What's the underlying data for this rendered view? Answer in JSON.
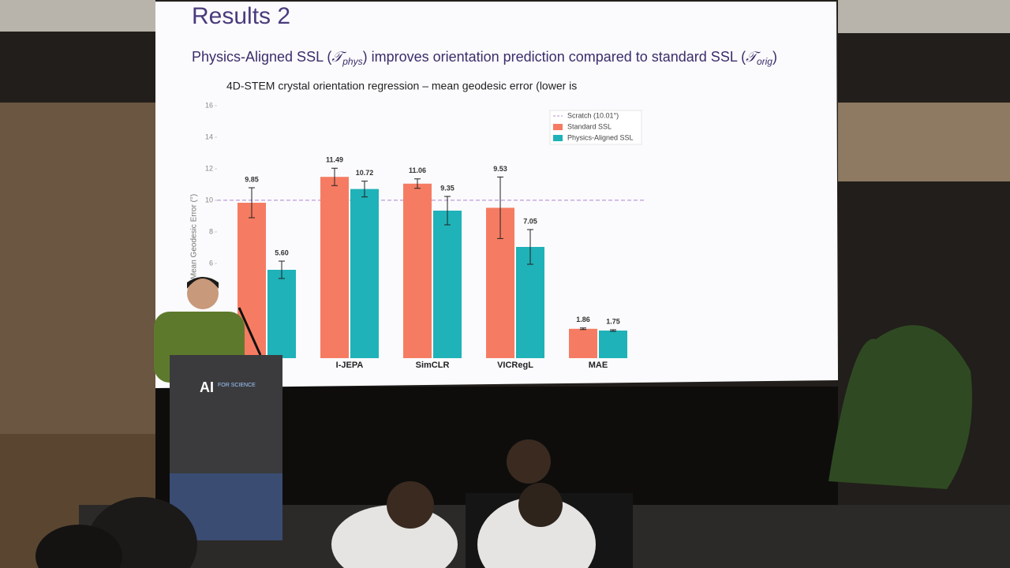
{
  "slide": {
    "title": "Results 2",
    "subtitle": [
      "Physics-Aligned SSL (",
      "𝒯",
      "phys",
      ") improves orientation prediction compared to standard SSL (",
      "𝒯",
      "orig",
      ")"
    ]
  },
  "podium": {
    "logo": "AI",
    "event": "FOR SCIENCE"
  },
  "chart_data": {
    "type": "bar",
    "title": "4D-STEM crystal orientation regression – mean geodesic error (lower is",
    "y_label": "Mean Geodesic Error (°)",
    "categories": [
      null,
      "I-JEPA",
      "SimCLR",
      "VICRegL",
      "MAE"
    ],
    "series": [
      {
        "name": "Standard SSL",
        "color": "#f57c62",
        "values": [
          9.85,
          11.49,
          11.06,
          9.53,
          1.86
        ],
        "value_labels": [
          "9.85",
          "11.49",
          "11.06",
          "9.53",
          "1.86"
        ],
        "errors": [
          0.95,
          0.55,
          0.3,
          1.95,
          0.05
        ]
      },
      {
        "name": "Physics-Aligned SSL",
        "color": "#1fb2b8",
        "values": [
          5.6,
          10.72,
          9.35,
          7.05,
          1.75
        ],
        "value_labels": [
          "5.60",
          "10.72",
          "9.35",
          "7.05",
          "1.75"
        ],
        "errors": [
          0.55,
          0.5,
          0.9,
          1.1,
          0.05
        ]
      }
    ],
    "reference": {
      "label": "Scratch (10.01°)",
      "value": 10.01,
      "color": "#b58fd6"
    },
    "ylim": [
      0,
      16
    ],
    "yticks": [
      6,
      8,
      10,
      12,
      14,
      16
    ],
    "legend": "upper right",
    "grid": false
  }
}
